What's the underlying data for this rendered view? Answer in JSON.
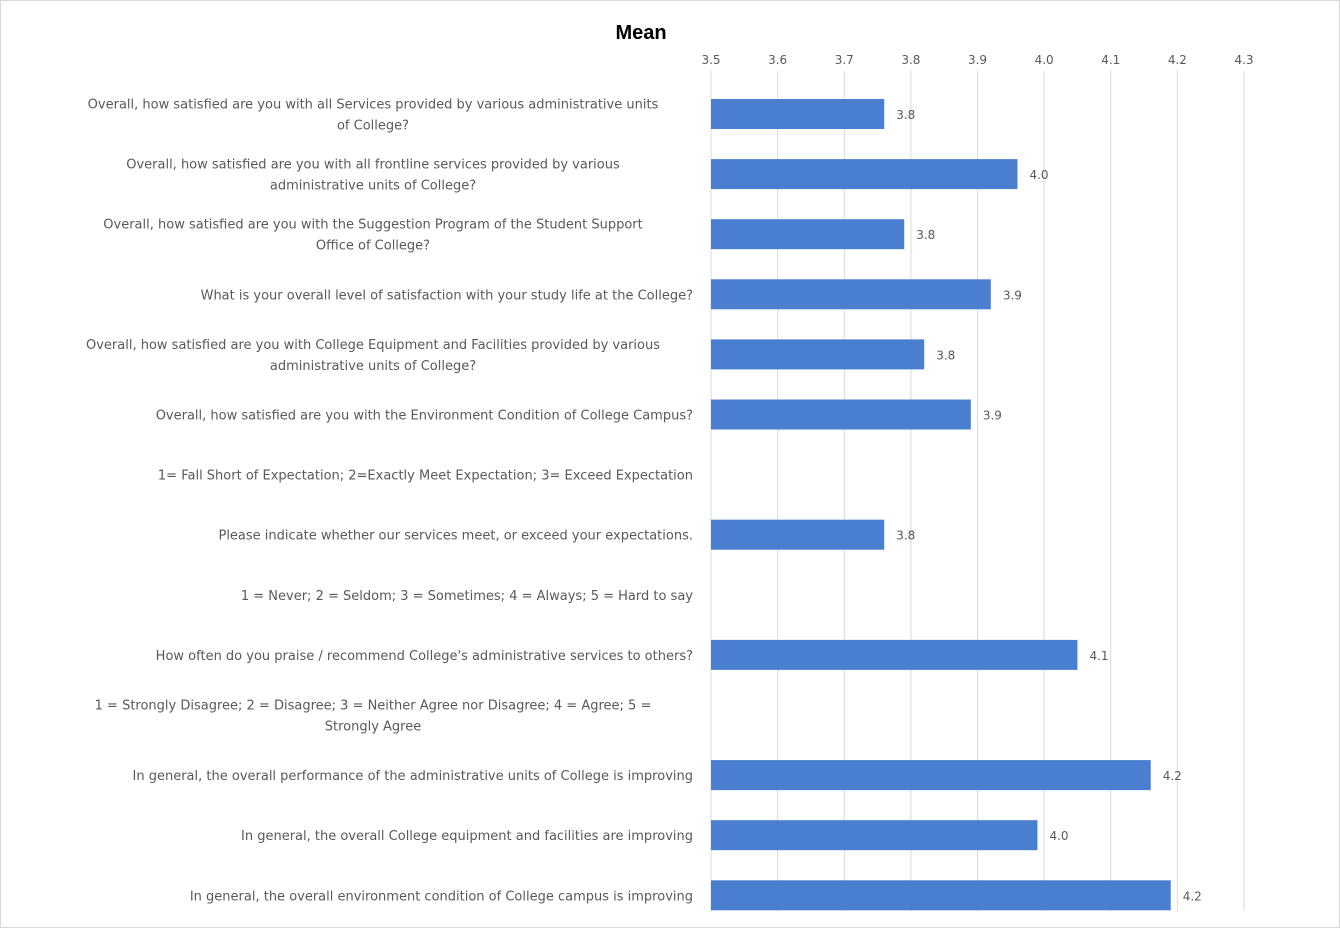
{
  "chart_data": {
    "type": "bar",
    "orientation": "horizontal",
    "title": "Mean",
    "x_axis_position": "top",
    "xlim": [
      3.5,
      4.3
    ],
    "x_ticks": [
      "3.5",
      "3.6",
      "3.7",
      "3.8",
      "3.9",
      "4.0",
      "4.1",
      "4.2",
      "4.3"
    ],
    "grid": true,
    "legend": "none",
    "bar_color": "#4a7fd0",
    "categories": [
      "Overall, how satisfied are you with all Services provided by various administrative units of College?",
      "Overall, how satisfied are you with all frontline services provided by various administrative units of College?",
      "Overall, how satisfied are you with the Suggestion Program of the  Student Support Office of College?",
      "What is your overall level of satisfaction with your study life at the College?",
      "Overall, how satisfied are you with College Equipment and Facilities provided by various administrative units of College?",
      "Overall, how satisfied are you with the Environment Condition of College Campus?",
      "1= Fall Short of Expectation; 2=Exactly Meet Expectation; 3= Exceed Expectation",
      "Please indicate whether our services meet, or exceed your expectations.",
      "1 = Never; 2 = Seldom; 3 = Sometimes; 4 = Always; 5 = Hard to say",
      "How often do you praise / recommend College's administrative services to others?",
      "1 = Strongly Disagree; 2 = Disagree; 3 = Neither Agree nor Disagree; 4 = Agree; 5 = Strongly Agree",
      "In general, the overall performance of the administrative units of College is improving",
      "In general, the overall College equipment and facilities are improving",
      "In general, the overall environment condition of College campus is improving"
    ],
    "category_label_lines": [
      [
        "Overall, how satisfied are you with all Services provided by various administrative units",
        "of College?"
      ],
      [
        "Overall, how satisfied are you with all frontline services provided by various",
        "administrative units of College?"
      ],
      [
        "Overall, how satisfied are you with the Suggestion Program of the  Student Support",
        "Office of College?"
      ],
      [
        "What is your overall level of satisfaction with your study life at the College?"
      ],
      [
        "Overall, how satisfied are you with College Equipment and Facilities provided by various",
        "administrative units of College?"
      ],
      [
        "Overall, how satisfied are you with the Environment Condition of College Campus?"
      ],
      [
        "1= Fall Short of Expectation; 2=Exactly Meet Expectation; 3= Exceed Expectation"
      ],
      [
        "Please indicate whether our services meet, or exceed your expectations."
      ],
      [
        "1 = Never; 2 = Seldom; 3 = Sometimes; 4 = Always; 5 = Hard to say"
      ],
      [
        "How often do you praise / recommend College's administrative services to others?"
      ],
      [
        "1 = Strongly Disagree; 2 = Disagree; 3 = Neither Agree nor Disagree; 4 = Agree; 5 =",
        "Strongly Agree"
      ],
      [
        "In general, the overall performance of the administrative units of College is improving"
      ],
      [
        "In general, the overall College equipment and facilities are improving"
      ],
      [
        "In general, the overall environment condition of College campus is improving"
      ]
    ],
    "values": [
      3.76,
      3.96,
      3.79,
      3.92,
      3.82,
      3.89,
      null,
      3.76,
      null,
      4.05,
      null,
      4.16,
      3.99,
      4.19
    ],
    "data_labels": [
      "3.8",
      "4.0",
      "3.8",
      "3.9",
      "3.8",
      "3.9",
      "",
      "3.8",
      "",
      "4.1",
      "",
      "4.2",
      "4.0",
      "4.2"
    ]
  }
}
